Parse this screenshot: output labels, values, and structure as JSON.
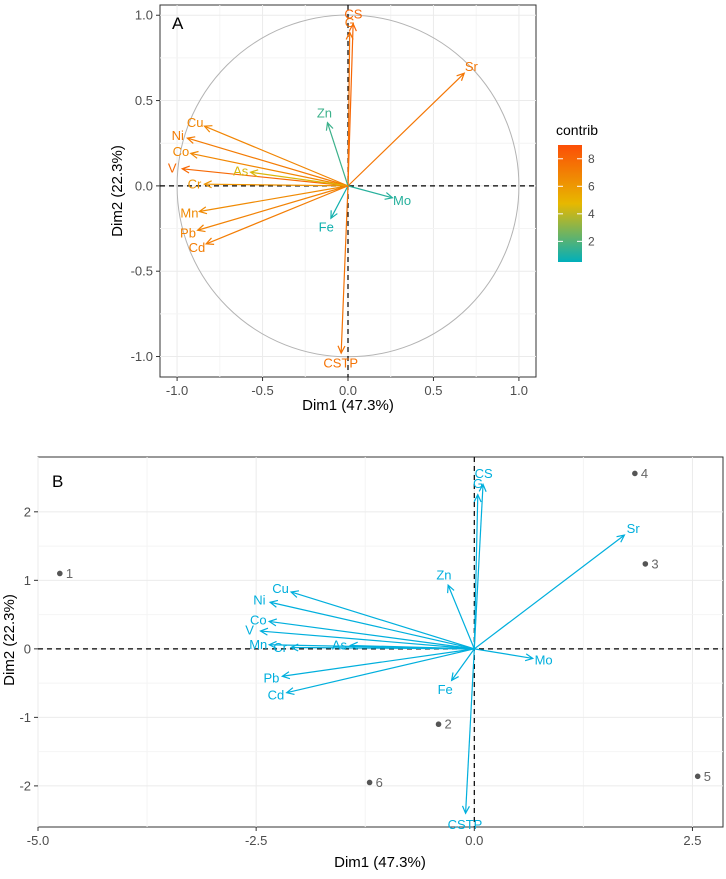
{
  "chart_data": [
    {
      "type": "scatter",
      "panel_label": "A",
      "title": "",
      "xlabel": "Dim1 (47.3%)",
      "ylabel": "Dim2 (22.3%)",
      "xlim": [
        -1.1,
        1.1
      ],
      "ylim": [
        -1.12,
        1.06
      ],
      "xticks": [
        -1.0,
        -0.5,
        0.0,
        0.5,
        1.0
      ],
      "xtick_labels": [
        "-1.0",
        "-0.5",
        "0.0",
        "0.5",
        "1.0"
      ],
      "yticks": [
        -1.0,
        -0.5,
        0.0,
        0.5,
        1.0
      ],
      "ytick_labels": [
        "-1.0",
        "-0.5",
        "0.0",
        "0.5",
        "1.0"
      ],
      "grid": true,
      "circle_radius": 1.0,
      "legend": {
        "title": "contrib",
        "placement": "right",
        "range": [
          0.5,
          9.0
        ],
        "ticks": [
          2,
          4,
          6,
          8
        ],
        "tick_labels": [
          "2",
          "4",
          "6",
          "8"
        ],
        "gradient_colors": [
          "#00AFBB",
          "#E7B800",
          "#FC4E07"
        ]
      },
      "variables": [
        {
          "label": "CS",
          "x": 0.03,
          "y": 0.95,
          "contrib": 8.0
        },
        {
          "label": "G",
          "x": 0.01,
          "y": 0.9,
          "contrib": 7.6
        },
        {
          "label": "Sr",
          "x": 0.68,
          "y": 0.66,
          "contrib": 7.4
        },
        {
          "label": "Zn",
          "x": -0.12,
          "y": 0.37,
          "contrib": 1.6
        },
        {
          "label": "Cu",
          "x": -0.84,
          "y": 0.35,
          "contrib": 6.8
        },
        {
          "label": "Ni",
          "x": -0.94,
          "y": 0.28,
          "contrib": 7.2
        },
        {
          "label": "Co",
          "x": -0.92,
          "y": 0.19,
          "contrib": 6.7
        },
        {
          "label": "V",
          "x": -0.97,
          "y": 0.1,
          "contrib": 7.9
        },
        {
          "label": "As",
          "x": -0.57,
          "y": 0.08,
          "contrib": 4.5
        },
        {
          "label": "Cr",
          "x": -0.84,
          "y": 0.01,
          "contrib": 6.2
        },
        {
          "label": "Mo",
          "x": 0.26,
          "y": -0.07,
          "contrib": 1.2
        },
        {
          "label": "Mn",
          "x": -0.87,
          "y": -0.15,
          "contrib": 6.6
        },
        {
          "label": "Fe",
          "x": -0.1,
          "y": -0.19,
          "contrib": 0.8
        },
        {
          "label": "Pb",
          "x": -0.88,
          "y": -0.26,
          "contrib": 6.9
        },
        {
          "label": "Cd",
          "x": -0.83,
          "y": -0.34,
          "contrib": 7.1
        },
        {
          "label": "CSTP",
          "x": -0.04,
          "y": -0.98,
          "contrib": 7.5
        }
      ]
    },
    {
      "type": "scatter",
      "panel_label": "B",
      "title": "",
      "xlabel": "Dim1 (47.3%)",
      "ylabel": "Dim2 (22.3%)",
      "xlim": [
        -5.0,
        2.85
      ],
      "ylim": [
        -2.6,
        2.8
      ],
      "xticks": [
        -5.0,
        -2.5,
        0.0,
        2.5
      ],
      "xtick_labels": [
        "-5.0",
        "-2.5",
        "0.0",
        "2.5"
      ],
      "yticks": [
        -2,
        -1,
        0,
        1,
        2
      ],
      "ytick_labels": [
        "-2",
        "-1",
        "0",
        "1",
        "2"
      ],
      "grid": true,
      "arrow_color": "#00AFDD",
      "point_color": "#555555",
      "points": [
        {
          "label": "1",
          "x": -4.75,
          "y": 1.1
        },
        {
          "label": "2",
          "x": -0.41,
          "y": -1.1
        },
        {
          "label": "3",
          "x": 1.96,
          "y": 1.24
        },
        {
          "label": "4",
          "x": 1.84,
          "y": 2.56
        },
        {
          "label": "5",
          "x": 2.56,
          "y": -1.86
        },
        {
          "label": "6",
          "x": -1.2,
          "y": -1.95
        }
      ],
      "variables": [
        {
          "label": "CS",
          "x": 0.1,
          "y": 2.4
        },
        {
          "label": "G",
          "x": 0.04,
          "y": 2.25
        },
        {
          "label": "Sr",
          "x": 1.72,
          "y": 1.66
        },
        {
          "label": "Zn",
          "x": -0.3,
          "y": 0.93
        },
        {
          "label": "Cu",
          "x": -2.1,
          "y": 0.83
        },
        {
          "label": "Ni",
          "x": -2.34,
          "y": 0.68
        },
        {
          "label": "Co",
          "x": -2.35,
          "y": 0.4
        },
        {
          "label": "V",
          "x": -2.45,
          "y": 0.26
        },
        {
          "label": "As",
          "x": -1.42,
          "y": 0.05
        },
        {
          "label": "Cr",
          "x": -2.1,
          "y": 0.02
        },
        {
          "label": "Mo",
          "x": 0.67,
          "y": -0.14
        },
        {
          "label": "Mn",
          "x": -2.35,
          "y": 0.06
        },
        {
          "label": "Fe",
          "x": -0.26,
          "y": -0.46
        },
        {
          "label": "Pb",
          "x": -2.2,
          "y": -0.4
        },
        {
          "label": "Cd",
          "x": -2.15,
          "y": -0.64
        },
        {
          "label": "CSTP",
          "x": -0.1,
          "y": -2.4
        }
      ]
    }
  ]
}
